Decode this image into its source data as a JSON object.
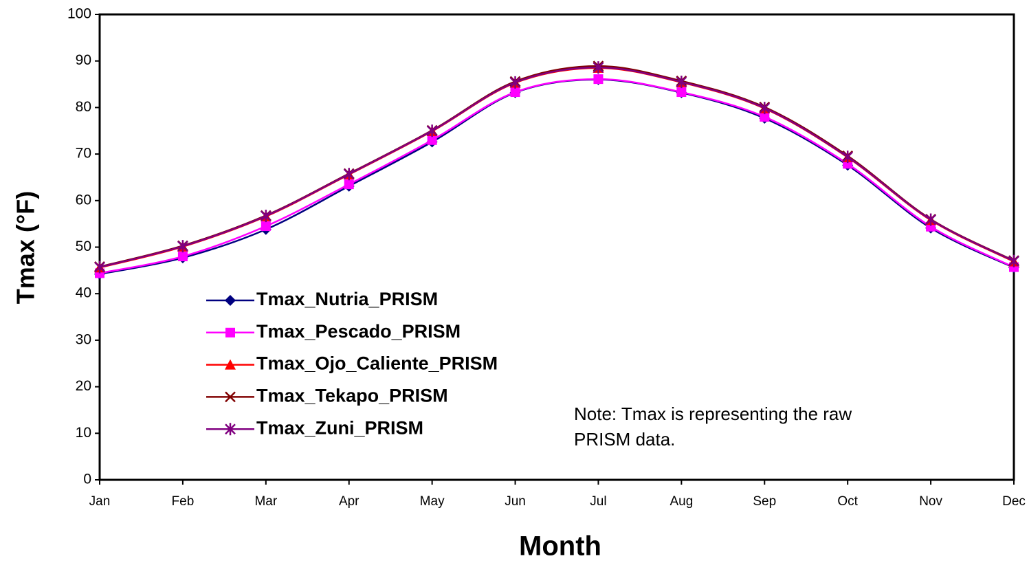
{
  "chart_data": {
    "type": "line",
    "smooth": true,
    "x_label": "Month",
    "y_label": "Tmax (°F)",
    "categories": [
      "Jan",
      "Feb",
      "Mar",
      "Apr",
      "May",
      "Jun",
      "Jul",
      "Aug",
      "Sep",
      "Oct",
      "Nov",
      "Dec"
    ],
    "series": [
      {
        "name": "Tmax_Nutria_PRISM",
        "color": "#000080",
        "marker": "diamond",
        "values": [
          44.2,
          47.7,
          53.8,
          63.1,
          72.6,
          83.2,
          86.0,
          83.2,
          77.7,
          67.6,
          54.1,
          45.6
        ]
      },
      {
        "name": "Tmax_Pescado_PRISM",
        "color": "#ff00ff",
        "marker": "square",
        "values": [
          44.4,
          48.0,
          54.5,
          63.5,
          73.0,
          83.3,
          86.1,
          83.3,
          78.0,
          67.9,
          54.4,
          45.7
        ]
      },
      {
        "name": "Tmax_Ojo_Caliente_PRISM",
        "color": "#ff0000",
        "marker": "triangle",
        "values": [
          45.6,
          50.1,
          56.6,
          65.6,
          74.9,
          85.3,
          88.5,
          85.4,
          79.8,
          69.3,
          55.8,
          46.9
        ]
      },
      {
        "name": "Tmax_Tekapo_PRISM",
        "color": "#800000",
        "marker": "x",
        "values": [
          45.8,
          50.3,
          56.8,
          65.8,
          75.1,
          85.6,
          88.9,
          85.7,
          80.1,
          69.6,
          56.0,
          47.1
        ]
      },
      {
        "name": "Tmax_Zuni_PRISM",
        "color": "#800080",
        "marker": "star",
        "values": [
          45.7,
          50.2,
          56.7,
          65.7,
          75.0,
          85.4,
          88.6,
          85.5,
          79.9,
          69.4,
          55.9,
          47.0
        ]
      }
    ],
    "ylim": [
      0,
      100
    ],
    "yticks": [
      0,
      10,
      20,
      30,
      40,
      50,
      60,
      70,
      80,
      90,
      100
    ],
    "grid": false,
    "annotation": [
      "Note: Tmax is representing the raw",
      "PRISM data."
    ]
  }
}
